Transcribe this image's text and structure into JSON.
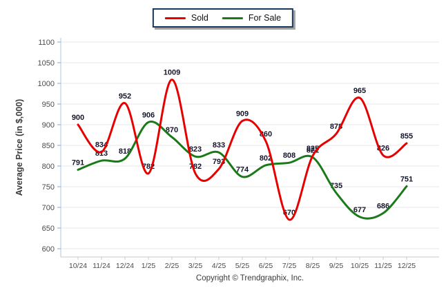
{
  "legend": {
    "sold_label": "Sold",
    "forsale_label": "For Sale"
  },
  "footer": {
    "copyright": "Copyright © Trendgraphix, Inc."
  },
  "colors": {
    "sold": "#e60000",
    "for_sale": "#1a7a1a",
    "legend_border": "#17375d",
    "gridline": "#e7e7e7",
    "y_axis": "#a9c6e3",
    "x_axis": "#c9c9c9",
    "tick_text": "#4a4a4a",
    "data_label_text": "#14142b",
    "axis_title_text": "#3d3d3d"
  },
  "chart_data": {
    "type": "line",
    "title": "",
    "xlabel": "",
    "ylabel": "Average Price (in $,000)",
    "ylim": [
      600,
      1100
    ],
    "ytick_step": 50,
    "grid": true,
    "smooth": true,
    "legend_position": "top",
    "categories": [
      "10/24",
      "11/24",
      "12/24",
      "1/25",
      "2/25",
      "3/25",
      "4/25",
      "5/25",
      "6/25",
      "7/25",
      "8/25",
      "9/25",
      "10/25",
      "11/25",
      "12/25"
    ],
    "series": [
      {
        "name": "Sold",
        "color": "#e60000",
        "values": [
          900,
          834,
          952,
          782,
          1009,
          782,
          793,
          909,
          860,
          670,
          825,
          878,
          965,
          826,
          855
        ]
      },
      {
        "name": "For Sale",
        "color": "#1a7a1a",
        "values": [
          791,
          813,
          818,
          906,
          870,
          823,
          833,
          774,
          802,
          808,
          821,
          735,
          677,
          686,
          751
        ]
      }
    ]
  }
}
